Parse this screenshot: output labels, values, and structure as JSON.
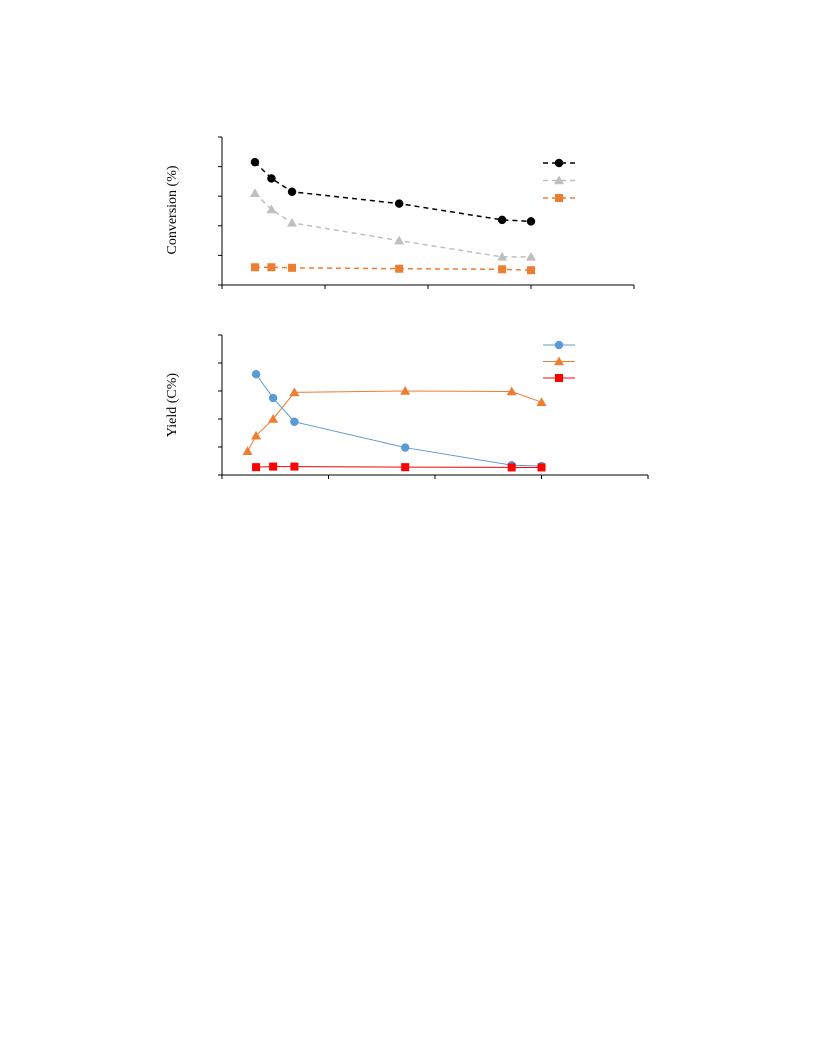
{
  "chart_data": [
    {
      "type": "line",
      "title": "",
      "xlabel": "",
      "ylabel": "Conversion (%)",
      "xlim": [
        0,
        20
      ],
      "ylim": [
        0,
        5
      ],
      "grid": false,
      "legend": "top-right",
      "series": [
        {
          "color": "#000000",
          "marker": "circle",
          "line": "dashed",
          "x": [
            1.6,
            2.4,
            3.4,
            8.6,
            13.6,
            15.0
          ],
          "y": [
            4.15,
            3.6,
            3.15,
            2.75,
            2.2,
            2.15
          ]
        },
        {
          "color": "#bfbfbf",
          "marker": "triangle",
          "line": "dashed",
          "x": [
            1.6,
            2.4,
            3.4,
            8.6,
            13.6,
            15.0
          ],
          "y": [
            3.1,
            2.55,
            2.1,
            1.5,
            0.95,
            0.95
          ]
        },
        {
          "color": "#ed7d31",
          "marker": "square",
          "line": "dashed",
          "x": [
            1.6,
            2.4,
            3.4,
            8.6,
            13.6,
            15.0
          ],
          "y": [
            0.6,
            0.6,
            0.58,
            0.55,
            0.53,
            0.5
          ]
        }
      ]
    },
    {
      "type": "line",
      "title": "",
      "xlabel": "",
      "ylabel": "Yield (C%)",
      "xlim": [
        0,
        20
      ],
      "ylim": [
        0,
        5
      ],
      "grid": false,
      "legend": "top-right",
      "series": [
        {
          "color": "#5b9bd5",
          "marker": "circle",
          "line": "solid",
          "x": [
            1.6,
            2.4,
            3.4,
            8.6,
            13.6,
            15.0
          ],
          "y": [
            3.6,
            2.75,
            1.9,
            0.98,
            0.35,
            0.32
          ]
        },
        {
          "color": "#ed7d31",
          "marker": "triangle",
          "line": "solid",
          "x": [
            1.2,
            1.6,
            2.4,
            3.4,
            8.6,
            13.6,
            15.0
          ],
          "y": [
            0.85,
            1.4,
            2.0,
            2.95,
            3.0,
            2.98,
            2.6
          ]
        },
        {
          "color": "#ff0000",
          "marker": "square",
          "line": "solid",
          "x": [
            1.6,
            2.4,
            3.4,
            8.6,
            13.6,
            15.0
          ],
          "y": [
            0.28,
            0.3,
            0.3,
            0.28,
            0.27,
            0.27
          ]
        }
      ]
    }
  ]
}
